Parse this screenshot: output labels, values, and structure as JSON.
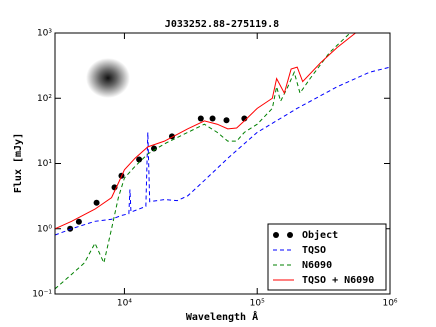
{
  "chart_data": {
    "type": "line",
    "title": "J033252.88-275119.8",
    "x_label": "Wavelength Å",
    "y_label": "Flux [mJy]",
    "xscale": "log",
    "yscale": "log",
    "xlim": [
      3000,
      1000000
    ],
    "ylim": [
      0.1,
      1000
    ],
    "xticks": [
      {
        "value": 10000,
        "label": "10⁴"
      },
      {
        "value": 100000,
        "label": "10⁵"
      },
      {
        "value": 1000000,
        "label": "10⁶"
      }
    ],
    "yticks": [
      {
        "value": 0.1,
        "label": "10⁻¹"
      },
      {
        "value": 1,
        "label": "10⁰"
      },
      {
        "value": 10,
        "label": "10¹"
      },
      {
        "value": 100,
        "label": "10²"
      },
      {
        "value": 1000,
        "label": "10³"
      }
    ],
    "legend": "lower right",
    "series": [
      {
        "name": "Object",
        "color": "#000000",
        "linestyle": "none",
        "x": [
          3900,
          4540,
          6170,
          8420,
          9500,
          12900,
          16700,
          22800,
          37600,
          46100,
          58700,
          80000
        ],
        "values": [
          1.0,
          1.28,
          2.5,
          4.3,
          6.5,
          11.5,
          17,
          26,
          49,
          49,
          46,
          49
        ]
      },
      {
        "name": "TQSO",
        "color": "#0000ff",
        "linestyle": "dashed",
        "x": [
          3000,
          4000,
          6000,
          8000,
          9500,
          10800,
          11000,
          11200,
          14500,
          15000,
          15500,
          20000,
          25000,
          30000,
          40000,
          60000,
          100000,
          200000,
          400000,
          700000,
          1000000
        ],
        "values": [
          0.8,
          1.0,
          1.3,
          1.4,
          1.6,
          1.7,
          4.0,
          1.8,
          2.2,
          30,
          2.6,
          2.8,
          2.7,
          3.2,
          5.5,
          12,
          30,
          70,
          150,
          250,
          300
        ]
      },
      {
        "name": "N6090",
        "color": "#008000",
        "linestyle": "dashed",
        "x": [
          3000,
          4000,
          5000,
          6000,
          7000,
          8000,
          9000,
          10000,
          12000,
          15000,
          20000,
          30000,
          40000,
          50000,
          60000,
          70000,
          80000,
          100000,
          130000,
          140000,
          150000,
          170000,
          190000,
          210000,
          250000,
          350000,
          500000
        ],
        "values": [
          0.12,
          0.2,
          0.3,
          0.6,
          0.3,
          1.0,
          3,
          6,
          9,
          14,
          20,
          30,
          40,
          30,
          22,
          22,
          30,
          40,
          70,
          150,
          90,
          150,
          250,
          120,
          200,
          500,
          1000
        ]
      },
      {
        "name": "TQSO + N6090",
        "color": "#ff0000",
        "linestyle": "solid",
        "x": [
          3000,
          4000,
          6000,
          8000,
          9000,
          10000,
          12000,
          15000,
          20000,
          30000,
          40000,
          50000,
          60000,
          70000,
          80000,
          100000,
          130000,
          140000,
          160000,
          180000,
          200000,
          220000,
          300000,
          400000,
          550000
        ],
        "values": [
          1.0,
          1.3,
          2.0,
          3.0,
          5,
          8,
          12,
          18,
          22,
          34,
          45,
          40,
          34,
          35,
          45,
          70,
          100,
          200,
          120,
          280,
          300,
          180,
          350,
          600,
          1000
        ]
      }
    ]
  }
}
